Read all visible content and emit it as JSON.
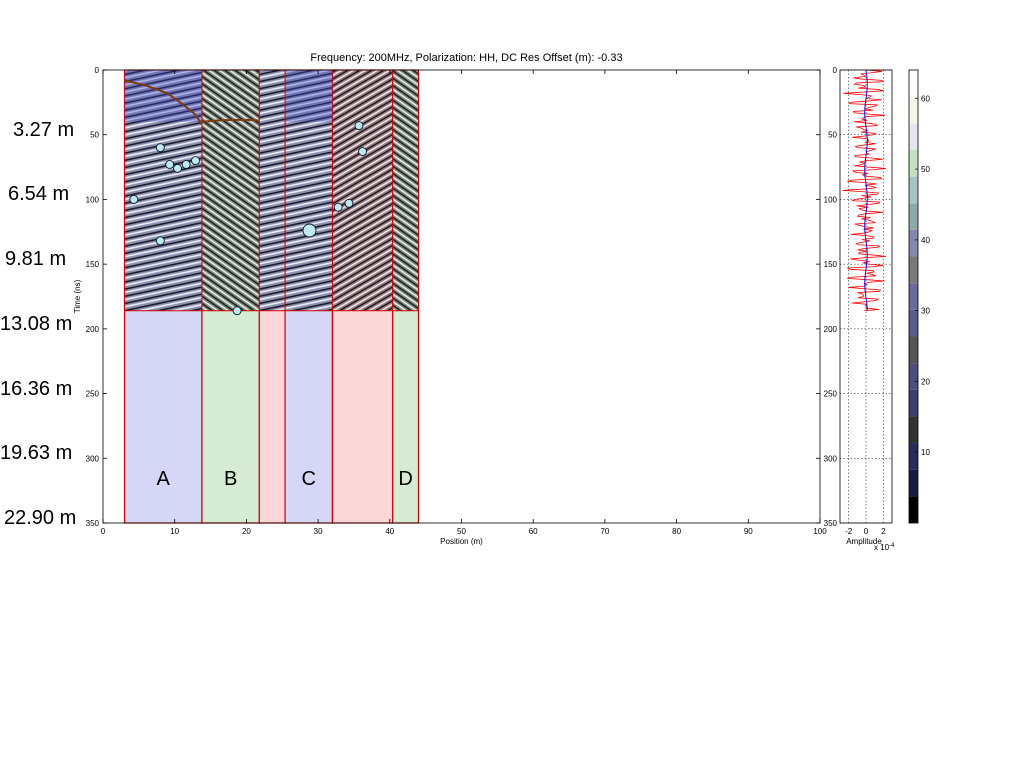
{
  "chart_data": [
    {
      "type": "heatmap",
      "title": "Frequency: 200MHz,  Polarization: HH,  DC Res Offset (m): -0.33",
      "xlabel": "Position (m)",
      "ylabel": "Time (ns)",
      "xlim": [
        0,
        100
      ],
      "ylim": [
        350,
        0
      ],
      "x_ticks": [
        "0",
        "10",
        "20",
        "30",
        "40",
        "50",
        "60",
        "70",
        "80",
        "90",
        "100"
      ],
      "y_ticks": [
        "0",
        "50",
        "100",
        "150",
        "200",
        "250",
        "300",
        "350"
      ],
      "radargram": {
        "x_range": [
          3,
          44
        ],
        "time_range": [
          0,
          186
        ]
      },
      "zones": [
        {
          "label": "A",
          "x_start": 3.0,
          "x_end": 13.8,
          "color": "#d6d6f7"
        },
        {
          "label": "B",
          "x_start": 13.8,
          "x_end": 21.8,
          "color": "#d5ebd3"
        },
        {
          "label": "",
          "x_start": 21.8,
          "x_end": 25.4,
          "color": "#fcd7da"
        },
        {
          "label": "C",
          "x_start": 25.4,
          "x_end": 32.0,
          "color": "#d6d6f7"
        },
        {
          "label": "",
          "x_start": 32.0,
          "x_end": 40.4,
          "color": "#fcd7da"
        },
        {
          "label": "D",
          "x_start": 40.4,
          "x_end": 44.0,
          "color": "#d5ebd3"
        }
      ],
      "zone_label_time": 310,
      "markers": [
        {
          "x": 8.0,
          "t": 60,
          "size": "small"
        },
        {
          "x": 9.3,
          "t": 73,
          "size": "small"
        },
        {
          "x": 10.4,
          "t": 76,
          "size": "small"
        },
        {
          "x": 11.6,
          "t": 73,
          "size": "small"
        },
        {
          "x": 12.9,
          "t": 70,
          "size": "small"
        },
        {
          "x": 4.3,
          "t": 100,
          "size": "small"
        },
        {
          "x": 8.0,
          "t": 132,
          "size": "small"
        },
        {
          "x": 18.7,
          "t": 186,
          "size": "small"
        },
        {
          "x": 28.8,
          "t": 124,
          "size": "large"
        },
        {
          "x": 35.7,
          "t": 43,
          "size": "small"
        },
        {
          "x": 36.2,
          "t": 63,
          "size": "small"
        },
        {
          "x": 32.8,
          "t": 106,
          "size": "small"
        },
        {
          "x": 34.3,
          "t": 103,
          "size": "small"
        }
      ],
      "picked_horizons": [
        {
          "points": [
            [
              3.0,
              8
            ],
            [
              6,
              12
            ],
            [
              9,
              18
            ],
            [
              11,
              26
            ],
            [
              12.8,
              34
            ],
            [
              13.8,
              42
            ]
          ]
        },
        {
          "points": [
            [
              13.8,
              40
            ],
            [
              16,
              39
            ],
            [
              18,
              38.5
            ],
            [
              20,
              38.5
            ],
            [
              21.8,
              39
            ]
          ]
        }
      ],
      "grid": false
    },
    {
      "type": "line",
      "xlabel": "Amplitude",
      "x_ticks": [
        "-2",
        "0",
        "2"
      ],
      "x_exponent": "x 10",
      "x_exponent_power": "-4",
      "xlim": [
        -3,
        3
      ],
      "y_ticks": [
        "0",
        "50",
        "100",
        "150",
        "200",
        "250",
        "300",
        "350"
      ],
      "ylim": [
        350,
        0
      ],
      "time_range": [
        0,
        186
      ],
      "series_colors": {
        "amplitude": "#ff0000",
        "mean": "#0000ff"
      },
      "grid": true,
      "grid_style": "dotted"
    }
  ],
  "colorbar": {
    "tick_labels": [
      "60",
      "50",
      "40",
      "30",
      "20",
      "10"
    ],
    "tick_values": [
      60,
      50,
      40,
      30,
      20,
      10
    ],
    "range": [
      0,
      64
    ],
    "colors": [
      "#000000",
      "#1a1a44",
      "#2a2a5c",
      "#333333",
      "#3c3c6e",
      "#4c4c7e",
      "#555555",
      "#5c5c8e",
      "#6a6a9a",
      "#7a7a7a",
      "#8686b0",
      "#8fa8a8",
      "#a7c4c4",
      "#c5e0c5",
      "#e5e5f0",
      "#f5f5e6",
      "#ffffff"
    ]
  },
  "depth_labels": [
    {
      "label": "3.27 m",
      "t": 50
    },
    {
      "label": "6.54 m",
      "t": 100
    },
    {
      "label": "9.81 m",
      "t": 150
    },
    {
      "label": "13.08 m",
      "t": 200
    },
    {
      "label": "16.36 m",
      "t": 250
    },
    {
      "label": "19.63 m",
      "t": 300
    },
    {
      "label": "22.90 m",
      "t": 350
    }
  ]
}
